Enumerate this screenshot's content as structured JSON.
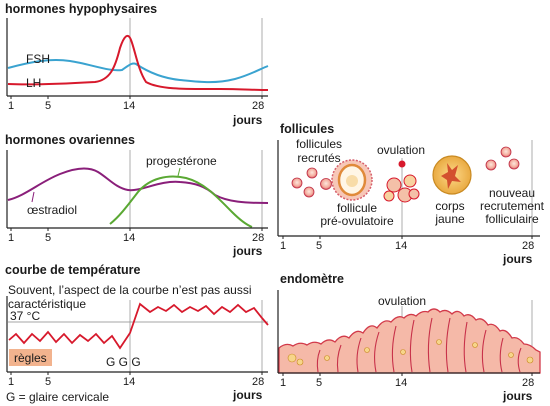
{
  "panel_hypo": {
    "title": "hormones hypophysaires",
    "label_fsh": "FSH",
    "label_lh": "LH",
    "ticks": [
      "1",
      "5",
      "14",
      "28"
    ],
    "axis_label": "jours"
  },
  "panel_ovar": {
    "title": "hormones ovariennes",
    "label_progesterone": "progestérone",
    "label_oestradiol": "œstradiol",
    "ticks": [
      "1",
      "5",
      "14",
      "28"
    ],
    "axis_label": "jours"
  },
  "panel_temp": {
    "title": "courbe de température",
    "note_line1": "Souvent, l’aspect de la courbe n’est  pas aussi",
    "note_line2": "caractéristique",
    "temp_label": "37 °C",
    "regles": "règles",
    "glaire": "G G G",
    "legend": "G = glaire cervicale",
    "ticks": [
      "1",
      "5",
      "14",
      "28"
    ],
    "axis_label": "jours"
  },
  "panel_foll": {
    "title": "follicules",
    "label_recrutes_1": "follicules",
    "label_recrutes_2": "recrutés",
    "label_ovulation": "ovulation",
    "label_preov_1": "follicule",
    "label_preov_2": "pré-ovulatoire",
    "label_corps_1": "corps",
    "label_corps_2": "jaune",
    "label_nouveau_1": "nouveau",
    "label_nouveau_2": "recrutement",
    "label_nouveau_3": "folliculaire",
    "ticks": [
      "1",
      "5",
      "14",
      "28"
    ],
    "axis_label": "jours"
  },
  "panel_endo": {
    "title": "endomètre",
    "label_ovulation": "ovulation",
    "ticks": [
      "1",
      "5",
      "14",
      "28"
    ],
    "axis_label": "jours"
  },
  "colors": {
    "fsh": "#3aa3d0",
    "lh": "#d7192c",
    "oestradiol": "#8a1f7a",
    "progesterone": "#5aa833",
    "temperature": "#d7192c",
    "tissue": "#f5b9a8",
    "tissue_dark": "#d23a4a"
  }
}
